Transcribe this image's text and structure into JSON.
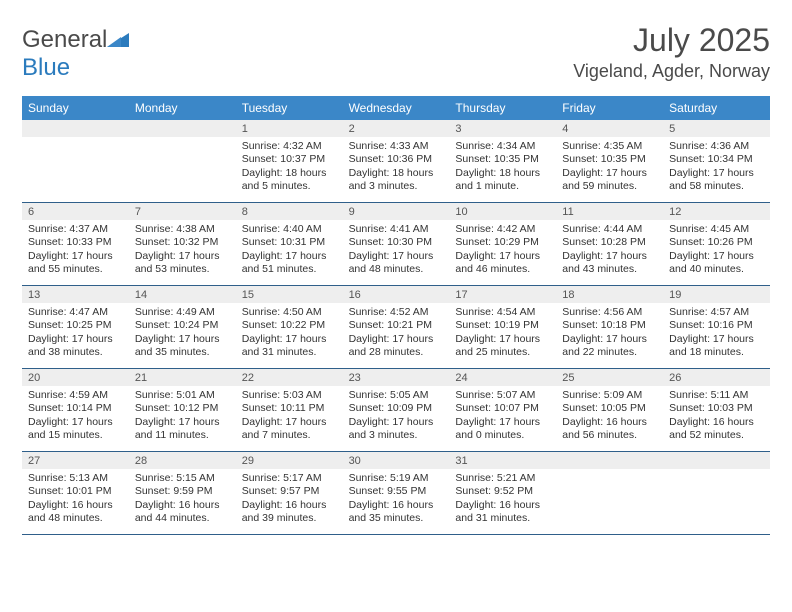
{
  "logo": {
    "word1": "General",
    "word2": "Blue"
  },
  "title": {
    "month": "July 2025",
    "location": "Vigeland, Agder, Norway"
  },
  "colors": {
    "header_bg": "#3b87c8",
    "header_text": "#ffffff",
    "daynum_bg": "#eeeeee",
    "border": "#2f5f8a",
    "text": "#333333",
    "logo_gray": "#4a4a4a",
    "logo_blue": "#2b7bbd"
  },
  "day_headers": [
    "Sunday",
    "Monday",
    "Tuesday",
    "Wednesday",
    "Thursday",
    "Friday",
    "Saturday"
  ],
  "weeks": [
    [
      null,
      null,
      {
        "n": "1",
        "sr": "Sunrise: 4:32 AM",
        "ss": "Sunset: 10:37 PM",
        "dl": "Daylight: 18 hours and 5 minutes."
      },
      {
        "n": "2",
        "sr": "Sunrise: 4:33 AM",
        "ss": "Sunset: 10:36 PM",
        "dl": "Daylight: 18 hours and 3 minutes."
      },
      {
        "n": "3",
        "sr": "Sunrise: 4:34 AM",
        "ss": "Sunset: 10:35 PM",
        "dl": "Daylight: 18 hours and 1 minute."
      },
      {
        "n": "4",
        "sr": "Sunrise: 4:35 AM",
        "ss": "Sunset: 10:35 PM",
        "dl": "Daylight: 17 hours and 59 minutes."
      },
      {
        "n": "5",
        "sr": "Sunrise: 4:36 AM",
        "ss": "Sunset: 10:34 PM",
        "dl": "Daylight: 17 hours and 58 minutes."
      }
    ],
    [
      {
        "n": "6",
        "sr": "Sunrise: 4:37 AM",
        "ss": "Sunset: 10:33 PM",
        "dl": "Daylight: 17 hours and 55 minutes."
      },
      {
        "n": "7",
        "sr": "Sunrise: 4:38 AM",
        "ss": "Sunset: 10:32 PM",
        "dl": "Daylight: 17 hours and 53 minutes."
      },
      {
        "n": "8",
        "sr": "Sunrise: 4:40 AM",
        "ss": "Sunset: 10:31 PM",
        "dl": "Daylight: 17 hours and 51 minutes."
      },
      {
        "n": "9",
        "sr": "Sunrise: 4:41 AM",
        "ss": "Sunset: 10:30 PM",
        "dl": "Daylight: 17 hours and 48 minutes."
      },
      {
        "n": "10",
        "sr": "Sunrise: 4:42 AM",
        "ss": "Sunset: 10:29 PM",
        "dl": "Daylight: 17 hours and 46 minutes."
      },
      {
        "n": "11",
        "sr": "Sunrise: 4:44 AM",
        "ss": "Sunset: 10:28 PM",
        "dl": "Daylight: 17 hours and 43 minutes."
      },
      {
        "n": "12",
        "sr": "Sunrise: 4:45 AM",
        "ss": "Sunset: 10:26 PM",
        "dl": "Daylight: 17 hours and 40 minutes."
      }
    ],
    [
      {
        "n": "13",
        "sr": "Sunrise: 4:47 AM",
        "ss": "Sunset: 10:25 PM",
        "dl": "Daylight: 17 hours and 38 minutes."
      },
      {
        "n": "14",
        "sr": "Sunrise: 4:49 AM",
        "ss": "Sunset: 10:24 PM",
        "dl": "Daylight: 17 hours and 35 minutes."
      },
      {
        "n": "15",
        "sr": "Sunrise: 4:50 AM",
        "ss": "Sunset: 10:22 PM",
        "dl": "Daylight: 17 hours and 31 minutes."
      },
      {
        "n": "16",
        "sr": "Sunrise: 4:52 AM",
        "ss": "Sunset: 10:21 PM",
        "dl": "Daylight: 17 hours and 28 minutes."
      },
      {
        "n": "17",
        "sr": "Sunrise: 4:54 AM",
        "ss": "Sunset: 10:19 PM",
        "dl": "Daylight: 17 hours and 25 minutes."
      },
      {
        "n": "18",
        "sr": "Sunrise: 4:56 AM",
        "ss": "Sunset: 10:18 PM",
        "dl": "Daylight: 17 hours and 22 minutes."
      },
      {
        "n": "19",
        "sr": "Sunrise: 4:57 AM",
        "ss": "Sunset: 10:16 PM",
        "dl": "Daylight: 17 hours and 18 minutes."
      }
    ],
    [
      {
        "n": "20",
        "sr": "Sunrise: 4:59 AM",
        "ss": "Sunset: 10:14 PM",
        "dl": "Daylight: 17 hours and 15 minutes."
      },
      {
        "n": "21",
        "sr": "Sunrise: 5:01 AM",
        "ss": "Sunset: 10:12 PM",
        "dl": "Daylight: 17 hours and 11 minutes."
      },
      {
        "n": "22",
        "sr": "Sunrise: 5:03 AM",
        "ss": "Sunset: 10:11 PM",
        "dl": "Daylight: 17 hours and 7 minutes."
      },
      {
        "n": "23",
        "sr": "Sunrise: 5:05 AM",
        "ss": "Sunset: 10:09 PM",
        "dl": "Daylight: 17 hours and 3 minutes."
      },
      {
        "n": "24",
        "sr": "Sunrise: 5:07 AM",
        "ss": "Sunset: 10:07 PM",
        "dl": "Daylight: 17 hours and 0 minutes."
      },
      {
        "n": "25",
        "sr": "Sunrise: 5:09 AM",
        "ss": "Sunset: 10:05 PM",
        "dl": "Daylight: 16 hours and 56 minutes."
      },
      {
        "n": "26",
        "sr": "Sunrise: 5:11 AM",
        "ss": "Sunset: 10:03 PM",
        "dl": "Daylight: 16 hours and 52 minutes."
      }
    ],
    [
      {
        "n": "27",
        "sr": "Sunrise: 5:13 AM",
        "ss": "Sunset: 10:01 PM",
        "dl": "Daylight: 16 hours and 48 minutes."
      },
      {
        "n": "28",
        "sr": "Sunrise: 5:15 AM",
        "ss": "Sunset: 9:59 PM",
        "dl": "Daylight: 16 hours and 44 minutes."
      },
      {
        "n": "29",
        "sr": "Sunrise: 5:17 AM",
        "ss": "Sunset: 9:57 PM",
        "dl": "Daylight: 16 hours and 39 minutes."
      },
      {
        "n": "30",
        "sr": "Sunrise: 5:19 AM",
        "ss": "Sunset: 9:55 PM",
        "dl": "Daylight: 16 hours and 35 minutes."
      },
      {
        "n": "31",
        "sr": "Sunrise: 5:21 AM",
        "ss": "Sunset: 9:52 PM",
        "dl": "Daylight: 16 hours and 31 minutes."
      },
      null,
      null
    ]
  ]
}
